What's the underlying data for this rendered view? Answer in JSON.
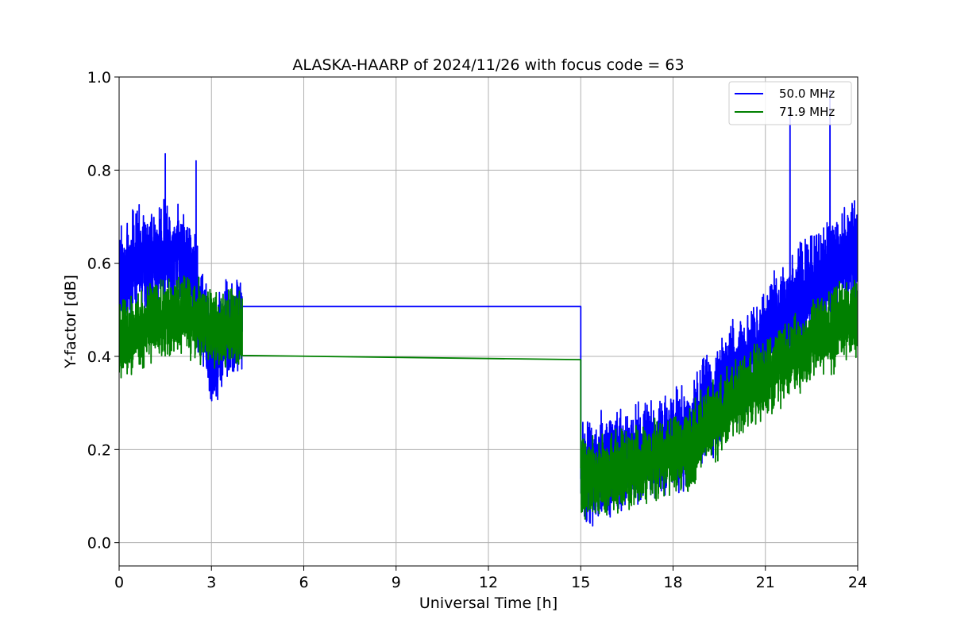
{
  "chart_data": {
    "type": "line",
    "title": "ALASKA-HAARP of 2024/11/26 with focus code = 63",
    "xlabel": "Universal Time [h]",
    "ylabel": "Y-factor [dB]",
    "xlim": [
      0,
      24
    ],
    "ylim": [
      -0.05,
      1.0
    ],
    "x_ticks": [
      0,
      3,
      6,
      9,
      12,
      15,
      18,
      21,
      24
    ],
    "y_ticks": [
      0.0,
      0.2,
      0.4,
      0.6,
      0.8,
      1.0
    ],
    "x_tick_labels": [
      "0",
      "3",
      "6",
      "9",
      "12",
      "15",
      "18",
      "21",
      "24"
    ],
    "y_tick_labels": [
      "0.0",
      "0.2",
      "0.4",
      "0.6",
      "0.8",
      "1.0"
    ],
    "grid": true,
    "legend_position": "top-right",
    "series": [
      {
        "name": "50.0 MHz",
        "color": "#0000ff",
        "x": [
          0.0,
          0.5,
          1.0,
          1.5,
          2.0,
          2.5,
          3.0,
          3.5,
          4.0,
          4.0,
          15.0,
          15.0,
          15.5,
          16.0,
          16.5,
          17.0,
          17.5,
          18.0,
          18.5,
          19.0,
          19.5,
          20.0,
          20.5,
          21.0,
          21.5,
          22.0,
          22.5,
          23.0,
          23.5,
          24.0
        ],
        "y": [
          0.55,
          0.6,
          0.6,
          0.62,
          0.63,
          0.55,
          0.4,
          0.45,
          0.48,
          0.507,
          0.507,
          0.15,
          0.16,
          0.17,
          0.18,
          0.2,
          0.2,
          0.22,
          0.23,
          0.28,
          0.32,
          0.36,
          0.4,
          0.44,
          0.48,
          0.52,
          0.55,
          0.57,
          0.6,
          0.62
        ],
        "spikes": [
          {
            "x": 1.5,
            "y": 0.835
          },
          {
            "x": 2.5,
            "y": 0.82
          },
          {
            "x": 21.8,
            "y": 0.93
          },
          {
            "x": 23.1,
            "y": 0.97
          }
        ],
        "noise_amplitude": 0.09
      },
      {
        "name": "71.9 MHz",
        "color": "#008000",
        "x": [
          0.0,
          0.5,
          1.0,
          1.5,
          2.0,
          2.5,
          3.0,
          3.5,
          4.0,
          4.0,
          15.0,
          15.0,
          15.5,
          16.0,
          16.5,
          17.0,
          17.5,
          18.0,
          18.5,
          19.0,
          19.5,
          20.0,
          20.5,
          21.0,
          21.5,
          22.0,
          22.5,
          23.0,
          23.5,
          24.0
        ],
        "y": [
          0.43,
          0.45,
          0.47,
          0.48,
          0.49,
          0.48,
          0.46,
          0.46,
          0.46,
          0.402,
          0.393,
          0.14,
          0.14,
          0.15,
          0.16,
          0.17,
          0.18,
          0.19,
          0.2,
          0.24,
          0.27,
          0.3,
          0.33,
          0.35,
          0.38,
          0.4,
          0.43,
          0.45,
          0.47,
          0.48
        ],
        "noise_amplitude": 0.07
      }
    ]
  }
}
